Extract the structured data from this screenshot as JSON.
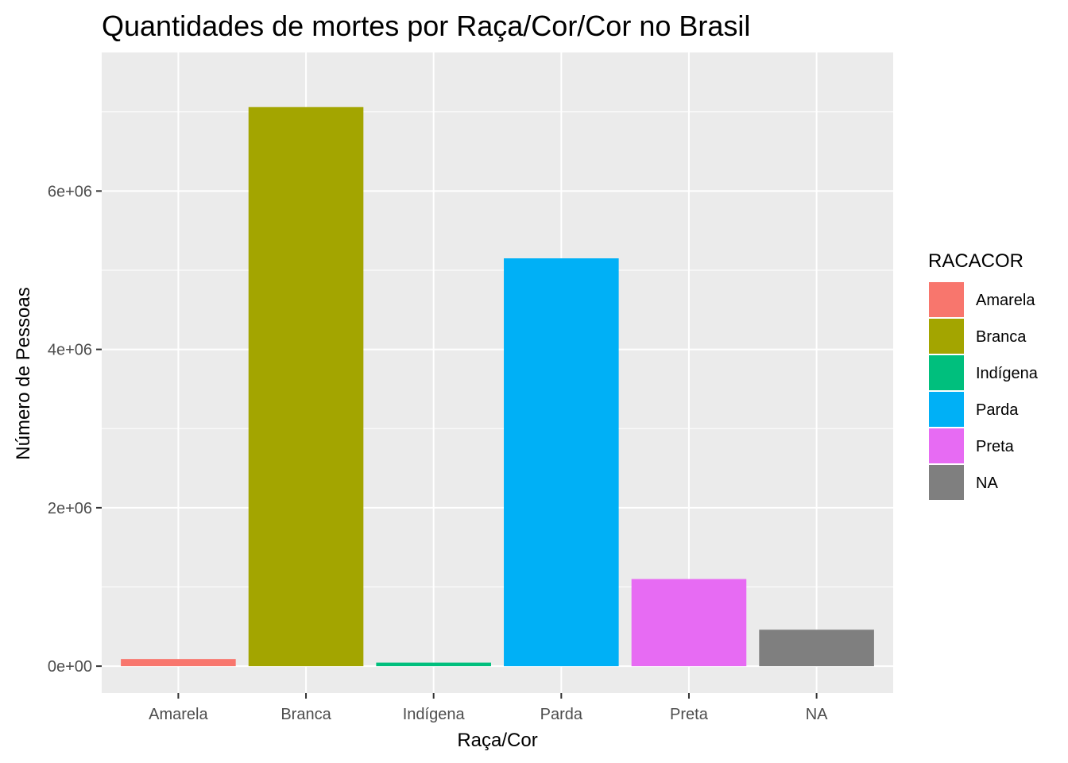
{
  "chart_data": {
    "type": "bar",
    "title": "Quantidades de mortes por Raça/Cor/Cor no Brasil",
    "xlabel": "Raça/Cor",
    "ylabel": "Número de Pessoas",
    "categories": [
      "Amarela",
      "Branca",
      "Indígena",
      "Parda",
      "Preta",
      "NA"
    ],
    "values": [
      90000,
      7060000,
      45000,
      5150000,
      1100000,
      460000
    ],
    "colors": [
      "#F8766D",
      "#A3A500",
      "#00BF7D",
      "#00B0F6",
      "#E76BF3",
      "#7F7F7F"
    ],
    "ylim": [
      -340000,
      7750000
    ],
    "y_ticks": [
      0,
      2000000,
      4000000,
      6000000
    ],
    "y_tick_labels": [
      "0e+00",
      "2e+06",
      "4e+06",
      "6e+06"
    ],
    "grid": true,
    "panel_background": "#EBEBEB",
    "legend": {
      "title": "RACACOR",
      "position": "right",
      "entries": [
        "Amarela",
        "Branca",
        "Indígena",
        "Parda",
        "Preta",
        "NA"
      ]
    }
  }
}
